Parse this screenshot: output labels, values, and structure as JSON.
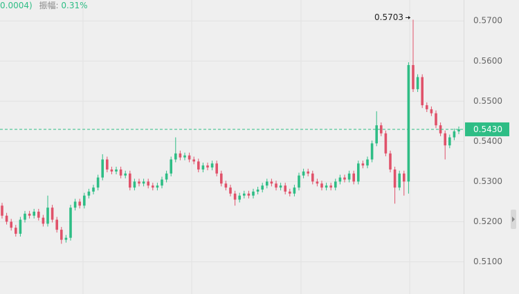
{
  "chart_data": {
    "type": "candlestick",
    "header": {
      "change": "0.0004)",
      "amplitude_label": "振幅:",
      "amplitude": "0.31%"
    },
    "up_color": "#2ebd85",
    "down_color": "#e0526a",
    "ylim": [
      0.502,
      0.5752
    ],
    "yticks": [
      {
        "value": 0.51,
        "label": "0.5100"
      },
      {
        "value": 0.52,
        "label": "0.5200"
      },
      {
        "value": 0.53,
        "label": "0.5300"
      },
      {
        "value": 0.54,
        "label": "0.5400"
      },
      {
        "value": 0.55,
        "label": "0.5500"
      },
      {
        "value": 0.56,
        "label": "0.5600"
      },
      {
        "value": 0.57,
        "label": "0.5700"
      }
    ],
    "grid": true,
    "last_price": {
      "value": 0.543,
      "label": "0.5430"
    },
    "max_annotation": {
      "value": 0.5703,
      "label": "0.5703"
    },
    "open": [
      0.524,
      0.5215,
      0.52,
      0.5185,
      0.517,
      0.5205,
      0.522,
      0.5215,
      0.5225,
      0.521,
      0.5195,
      0.5235,
      0.5205,
      0.518,
      0.5155,
      0.516,
      0.5235,
      0.525,
      0.524,
      0.5265,
      0.5275,
      0.5285,
      0.531,
      0.5355,
      0.533,
      0.5325,
      0.533,
      0.5315,
      0.532,
      0.5285,
      0.53,
      0.5295,
      0.53,
      0.529,
      0.5285,
      0.529,
      0.5305,
      0.532,
      0.5355,
      0.537,
      0.536,
      0.5365,
      0.5355,
      0.535,
      0.533,
      0.534,
      0.5335,
      0.5345,
      0.532,
      0.5295,
      0.5285,
      0.527,
      0.5255,
      0.5265,
      0.527,
      0.5265,
      0.5275,
      0.528,
      0.529,
      0.53,
      0.5295,
      0.5285,
      0.529,
      0.5275,
      0.527,
      0.5285,
      0.5315,
      0.5325,
      0.532,
      0.53,
      0.5295,
      0.5285,
      0.529,
      0.5285,
      0.53,
      0.531,
      0.5305,
      0.532,
      0.53,
      0.5345,
      0.534,
      0.5355,
      0.5395,
      0.544,
      0.542,
      0.537,
      0.533,
      0.5285,
      0.532,
      0.53,
      0.559,
      0.553,
      0.556,
      0.549,
      0.548,
      0.547,
      0.544,
      0.542,
      0.539,
      0.541,
      0.5425
    ],
    "high": [
      0.5247,
      0.5222,
      0.5207,
      0.5192,
      0.5212,
      0.5227,
      0.5227,
      0.5232,
      0.5232,
      0.5217,
      0.5265,
      0.5242,
      0.5212,
      0.5187,
      0.5167,
      0.5242,
      0.5257,
      0.5257,
      0.5272,
      0.5282,
      0.5292,
      0.5317,
      0.5368,
      0.5362,
      0.5337,
      0.5337,
      0.5337,
      0.5327,
      0.5327,
      0.5307,
      0.5307,
      0.5307,
      0.5307,
      0.5297,
      0.5297,
      0.5312,
      0.5327,
      0.5362,
      0.541,
      0.5377,
      0.5372,
      0.5372,
      0.5362,
      0.5357,
      0.5347,
      0.5347,
      0.5352,
      0.5352,
      0.5327,
      0.5302,
      0.5292,
      0.5277,
      0.5272,
      0.5277,
      0.5277,
      0.5282,
      0.5287,
      0.5297,
      0.5307,
      0.5307,
      0.5302,
      0.5297,
      0.5297,
      0.5282,
      0.5292,
      0.5322,
      0.5332,
      0.5332,
      0.5327,
      0.5307,
      0.5302,
      0.5297,
      0.5297,
      0.5307,
      0.5317,
      0.5317,
      0.5327,
      0.5327,
      0.5352,
      0.5352,
      0.5362,
      0.5402,
      0.5475,
      0.5447,
      0.5427,
      0.5377,
      0.5337,
      0.5327,
      0.5327,
      0.5597,
      0.5703,
      0.5567,
      0.5567,
      0.5497,
      0.5487,
      0.5477,
      0.5447,
      0.5427,
      0.5417,
      0.5432,
      0.5437
    ],
    "low": [
      0.5208,
      0.5193,
      0.5178,
      0.5163,
      0.5163,
      0.5198,
      0.5208,
      0.5208,
      0.5203,
      0.5188,
      0.5188,
      0.5198,
      0.5173,
      0.5145,
      0.5148,
      0.5153,
      0.5228,
      0.5233,
      0.5233,
      0.5258,
      0.5268,
      0.5278,
      0.5303,
      0.5323,
      0.5318,
      0.5318,
      0.5308,
      0.5308,
      0.5278,
      0.5278,
      0.5288,
      0.5288,
      0.5283,
      0.5278,
      0.5278,
      0.5283,
      0.5298,
      0.5313,
      0.5348,
      0.5353,
      0.5353,
      0.5348,
      0.5343,
      0.5323,
      0.5323,
      0.5328,
      0.5328,
      0.5313,
      0.5288,
      0.5278,
      0.5263,
      0.524,
      0.5248,
      0.5258,
      0.5258,
      0.5258,
      0.5268,
      0.5273,
      0.5283,
      0.5288,
      0.5278,
      0.5278,
      0.5268,
      0.5263,
      0.5263,
      0.5278,
      0.5308,
      0.5313,
      0.5293,
      0.5288,
      0.5278,
      0.5278,
      0.5278,
      0.5278,
      0.5293,
      0.5298,
      0.5298,
      0.5293,
      0.5293,
      0.5333,
      0.5333,
      0.5348,
      0.5388,
      0.5413,
      0.5363,
      0.5323,
      0.5245,
      0.5278,
      0.5265,
      0.527,
      0.5523,
      0.5523,
      0.5483,
      0.5473,
      0.5463,
      0.5433,
      0.5413,
      0.5355,
      0.5383,
      0.5403,
      0.5418
    ],
    "close": [
      0.5215,
      0.52,
      0.5185,
      0.517,
      0.5205,
      0.522,
      0.5215,
      0.5225,
      0.521,
      0.5195,
      0.5235,
      0.5205,
      0.518,
      0.5155,
      0.516,
      0.5235,
      0.525,
      0.524,
      0.5265,
      0.5275,
      0.5285,
      0.531,
      0.5355,
      0.533,
      0.5325,
      0.533,
      0.5315,
      0.532,
      0.5285,
      0.53,
      0.5295,
      0.53,
      0.529,
      0.5285,
      0.529,
      0.5305,
      0.532,
      0.5355,
      0.537,
      0.536,
      0.5365,
      0.5355,
      0.535,
      0.533,
      0.534,
      0.5335,
      0.5345,
      0.532,
      0.5295,
      0.5285,
      0.527,
      0.5255,
      0.5265,
      0.527,
      0.5265,
      0.5275,
      0.528,
      0.529,
      0.53,
      0.5295,
      0.5285,
      0.529,
      0.5275,
      0.527,
      0.5285,
      0.5315,
      0.5325,
      0.532,
      0.53,
      0.5295,
      0.5285,
      0.529,
      0.5285,
      0.53,
      0.531,
      0.5305,
      0.532,
      0.53,
      0.5345,
      0.534,
      0.5355,
      0.5395,
      0.544,
      0.542,
      0.537,
      0.533,
      0.5285,
      0.532,
      0.53,
      0.559,
      0.553,
      0.556,
      0.549,
      0.548,
      0.547,
      0.544,
      0.542,
      0.539,
      0.541,
      0.5425,
      0.543
    ]
  }
}
